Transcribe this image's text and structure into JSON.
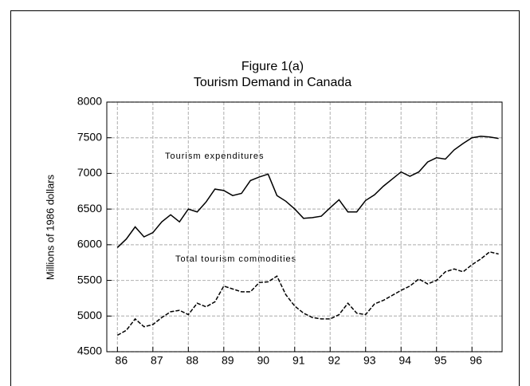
{
  "chart_data": {
    "type": "line",
    "title": "Figure 1(a)",
    "subtitle": "Tourism Demand in Canada",
    "ylabel": "Millions of 1986 dollars",
    "x": [
      1986,
      1986.25,
      1986.5,
      1986.75,
      1987,
      1987.25,
      1987.5,
      1987.75,
      1988,
      1988.25,
      1988.5,
      1988.75,
      1989,
      1989.25,
      1989.5,
      1989.75,
      1990,
      1990.25,
      1990.5,
      1990.75,
      1991,
      1991.25,
      1991.5,
      1991.75,
      1992,
      1992.25,
      1992.5,
      1992.75,
      1993,
      1993.25,
      1993.5,
      1993.75,
      1994,
      1994.25,
      1994.5,
      1994.75,
      1995,
      1995.25,
      1995.5,
      1995.75,
      1996,
      1996.25,
      1996.5,
      1996.75
    ],
    "series": [
      {
        "name": "Tourism expenditures",
        "color": "#000000",
        "dash": false,
        "values": [
          5960,
          6080,
          6250,
          6110,
          6170,
          6320,
          6420,
          6320,
          6500,
          6460,
          6600,
          6780,
          6760,
          6690,
          6720,
          6900,
          6950,
          6990,
          6690,
          6610,
          6500,
          6370,
          6380,
          6400,
          6520,
          6630,
          6460,
          6460,
          6620,
          6700,
          6820,
          6920,
          7020,
          6960,
          7020,
          7160,
          7220,
          7200,
          7330,
          7420,
          7500,
          7520,
          7510,
          7490
        ]
      },
      {
        "name": "Total tourism commodities",
        "color": "#000000",
        "dash": true,
        "values": [
          4730,
          4800,
          4960,
          4850,
          4880,
          4980,
          5060,
          5080,
          5020,
          5180,
          5130,
          5200,
          5420,
          5380,
          5340,
          5340,
          5470,
          5480,
          5560,
          5300,
          5140,
          5040,
          4980,
          4960,
          4960,
          5020,
          5180,
          5040,
          5020,
          5170,
          5220,
          5290,
          5360,
          5420,
          5520,
          5450,
          5500,
          5620,
          5660,
          5620,
          5720,
          5800,
          5900,
          5870
        ]
      }
    ],
    "xlim": [
      1985.7,
      1996.85
    ],
    "xticks": [
      {
        "value": 1986,
        "label": "86"
      },
      {
        "value": 1987,
        "label": "87"
      },
      {
        "value": 1988,
        "label": "88"
      },
      {
        "value": 1989,
        "label": "89"
      },
      {
        "value": 1990,
        "label": "90"
      },
      {
        "value": 1991,
        "label": "91"
      },
      {
        "value": 1992,
        "label": "92"
      },
      {
        "value": 1993,
        "label": "93"
      },
      {
        "value": 1994,
        "label": "94"
      },
      {
        "value": 1995,
        "label": "95"
      },
      {
        "value": 1996,
        "label": "96"
      }
    ],
    "ylim": [
      4500,
      8000
    ],
    "yticks": [
      4500,
      5000,
      5500,
      6000,
      6500,
      7000,
      7500,
      8000
    ],
    "grid": true
  }
}
